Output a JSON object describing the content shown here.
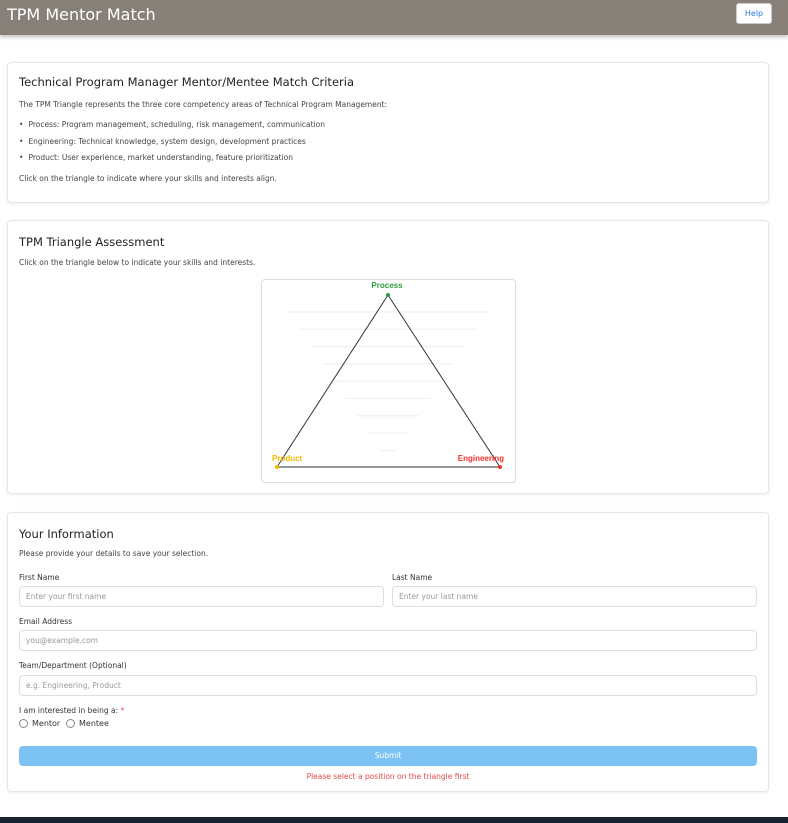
{
  "header": {
    "title": "TPM Mentor Match",
    "help_label": "Help"
  },
  "criteria": {
    "title": "Technical Program Manager Mentor/Mentee Match Criteria",
    "intro": "The TPM Triangle represents the three core competency areas of Technical Program Management:",
    "bullets": [
      "Process: Program management, scheduling, risk management, communication",
      "Engineering: Technical knowledge, system design, development practices",
      "Product: User experience, market understanding, feature prioritization"
    ],
    "outro": "Click on the triangle to indicate where your skills and interests align."
  },
  "assessment": {
    "title": "TPM Triangle Assessment",
    "instruction": "Click on the triangle below to indicate your skills and interests.",
    "vertices": {
      "top": "Process",
      "left": "Product",
      "right": "Engineering"
    },
    "colors": {
      "process": "#2e9e3e",
      "product": "#f5b800",
      "engineering": "#f03030"
    }
  },
  "form": {
    "title": "Your Information",
    "subtitle": "Please provide your details to save your selection.",
    "first_name": {
      "label": "First Name",
      "placeholder": "Enter your first name",
      "value": ""
    },
    "last_name": {
      "label": "Last Name",
      "placeholder": "Enter your last name",
      "value": ""
    },
    "email": {
      "label": "Email Address",
      "placeholder": "you@example.com",
      "value": ""
    },
    "team": {
      "label": "Team/Department (Optional)",
      "placeholder": "e.g. Engineering, Product",
      "value": ""
    },
    "role": {
      "label": "I am interested in being a:",
      "required_mark": "*",
      "options": [
        "Mentor",
        "Mentee"
      ],
      "selected": null
    },
    "submit_label": "Submit",
    "error": "Please select a position on the triangle first"
  }
}
